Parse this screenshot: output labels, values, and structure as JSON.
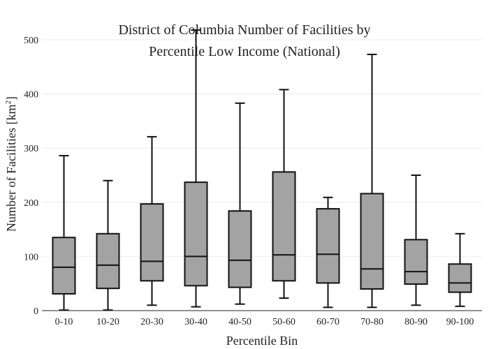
{
  "chart_data": {
    "type": "box",
    "title_lines": [
      "District of Columbia Number of Facilities by",
      "Percentile Low Income (National)"
    ],
    "xlabel": "Percentile Bin",
    "ylabel": "Number of Facilities  [km",
    "ylabel_sup": "2",
    "ylabel_close": "]",
    "ylim": [
      0,
      525
    ],
    "yticks": [
      0,
      100,
      200,
      300,
      400,
      500
    ],
    "grid": true,
    "box_color": "#a3a3a3",
    "categories": [
      "0-10",
      "10-20",
      "20-30",
      "30-40",
      "40-50",
      "50-60",
      "60-70",
      "70-80",
      "80-90",
      "90-100"
    ],
    "boxes": [
      {
        "min": 1,
        "q1": 31,
        "median": 80,
        "q3": 135,
        "max": 286
      },
      {
        "min": 1,
        "q1": 41,
        "median": 84,
        "q3": 142,
        "max": 240
      },
      {
        "min": 10,
        "q1": 55,
        "median": 91,
        "q3": 197,
        "max": 321
      },
      {
        "min": 7,
        "q1": 46,
        "median": 100,
        "q3": 237,
        "max": 518
      },
      {
        "min": 12,
        "q1": 43,
        "median": 93,
        "q3": 184,
        "max": 383
      },
      {
        "min": 23,
        "q1": 55,
        "median": 103,
        "q3": 256,
        "max": 408
      },
      {
        "min": 6,
        "q1": 51,
        "median": 104,
        "q3": 188,
        "max": 209
      },
      {
        "min": 6,
        "q1": 40,
        "median": 77,
        "q3": 216,
        "max": 473
      },
      {
        "min": 10,
        "q1": 49,
        "median": 72,
        "q3": 131,
        "max": 250
      },
      {
        "min": 8,
        "q1": 34,
        "median": 51,
        "q3": 86,
        "max": 142
      }
    ]
  }
}
